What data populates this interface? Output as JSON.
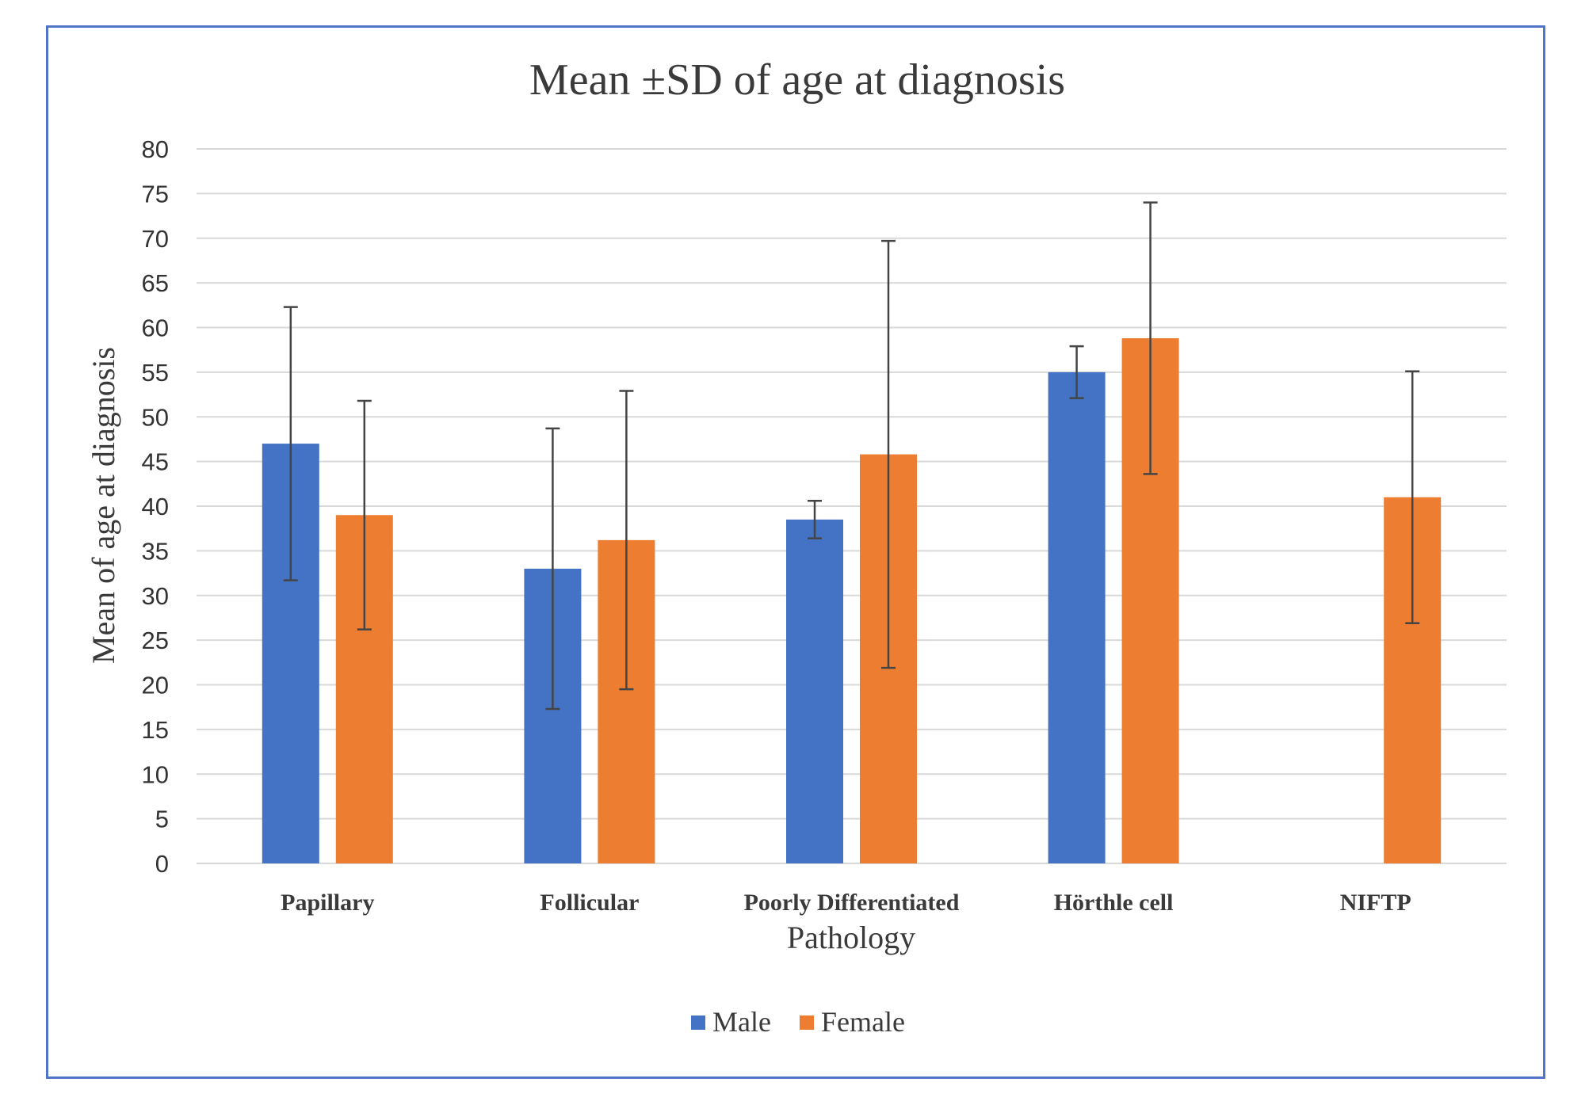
{
  "chart_data": {
    "type": "bar",
    "title": "Mean ±SD of age at diagnosis",
    "xlabel": "Pathology",
    "ylabel": "Mean of age at diagnosis",
    "categories": [
      "Papillary",
      "Follicular",
      "Poorly Differentiated",
      "Hörthle cell",
      "NIFTP"
    ],
    "ylim": [
      0,
      80
    ],
    "yticks": [
      "0",
      "5",
      "10",
      "15",
      "20",
      "25",
      "30",
      "35",
      "40",
      "45",
      "50",
      "55",
      "60",
      "65",
      "70",
      "75",
      "80"
    ],
    "grid": true,
    "legend_position": "bottom",
    "series": [
      {
        "name": "Male",
        "color": "#4472c4",
        "values": [
          47,
          33,
          38.5,
          55,
          null
        ],
        "sd": [
          15.3,
          15.7,
          2.1,
          2.9,
          null
        ]
      },
      {
        "name": "Female",
        "color": "#ed7d31",
        "values": [
          39,
          36.2,
          45.8,
          58.8,
          41
        ],
        "sd": [
          12.8,
          16.7,
          23.9,
          15.2,
          14.1
        ]
      }
    ]
  }
}
